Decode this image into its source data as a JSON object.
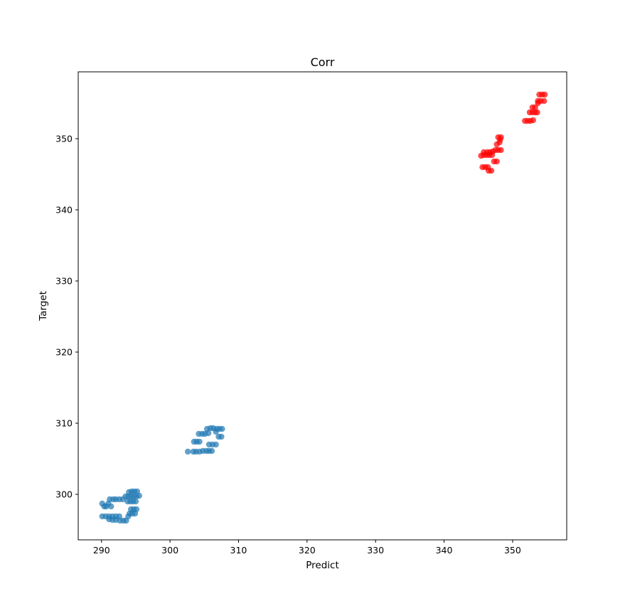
{
  "chart_data": {
    "type": "scatter",
    "title": "Corr",
    "xlabel": "Predict",
    "ylabel": "Target",
    "xlim": [
      286.6,
      357.9
    ],
    "ylim": [
      293.6,
      359.4
    ],
    "xticks": [
      290,
      300,
      310,
      320,
      330,
      340,
      350
    ],
    "yticks": [
      300,
      310,
      320,
      330,
      340,
      350
    ],
    "grid": false,
    "legend": "none",
    "series": [
      {
        "color": "#1f77b4",
        "alpha": 0.7,
        "points": [
          [
            290.1,
            298.7
          ],
          [
            290.4,
            298.3
          ],
          [
            290.7,
            298.3
          ],
          [
            291.0,
            298.7
          ],
          [
            291.4,
            298.3
          ],
          [
            291.2,
            299.3
          ],
          [
            291.7,
            299.3
          ],
          [
            292.1,
            299.3
          ],
          [
            292.6,
            299.3
          ],
          [
            293.1,
            299.3
          ],
          [
            290.1,
            296.9
          ],
          [
            290.6,
            296.9
          ],
          [
            291.1,
            296.9
          ],
          [
            291.6,
            296.9
          ],
          [
            292.1,
            296.9
          ],
          [
            292.6,
            296.9
          ],
          [
            291.1,
            296.5
          ],
          [
            291.6,
            296.4
          ],
          [
            292.1,
            296.4
          ],
          [
            292.7,
            296.3
          ],
          [
            293.2,
            296.3
          ],
          [
            293.6,
            296.3
          ],
          [
            293.9,
            296.9
          ],
          [
            294.1,
            297.3
          ],
          [
            294.5,
            297.3
          ],
          [
            294.9,
            297.3
          ],
          [
            294.3,
            297.9
          ],
          [
            294.7,
            297.9
          ],
          [
            295.1,
            297.9
          ],
          [
            293.8,
            299.0
          ],
          [
            294.2,
            299.0
          ],
          [
            294.6,
            299.0
          ],
          [
            295.0,
            299.0
          ],
          [
            293.5,
            299.7
          ],
          [
            293.9,
            299.7
          ],
          [
            294.3,
            299.7
          ],
          [
            294.7,
            299.7
          ],
          [
            295.1,
            299.7
          ],
          [
            295.5,
            299.8
          ],
          [
            294.0,
            300.3
          ],
          [
            294.4,
            300.4
          ],
          [
            294.8,
            300.4
          ],
          [
            295.2,
            300.4
          ],
          [
            302.6,
            306.0
          ],
          [
            303.4,
            306.0
          ],
          [
            303.8,
            306.0
          ],
          [
            304.3,
            306.0
          ],
          [
            304.8,
            306.1
          ],
          [
            305.3,
            306.1
          ],
          [
            305.7,
            306.1
          ],
          [
            306.1,
            306.1
          ],
          [
            303.5,
            307.4
          ],
          [
            303.9,
            307.4
          ],
          [
            304.3,
            307.4
          ],
          [
            305.7,
            307.0
          ],
          [
            306.2,
            307.0
          ],
          [
            306.7,
            307.0
          ],
          [
            304.2,
            308.5
          ],
          [
            304.7,
            308.5
          ],
          [
            305.1,
            308.5
          ],
          [
            305.6,
            308.6
          ],
          [
            305.4,
            309.2
          ],
          [
            305.9,
            309.3
          ],
          [
            306.3,
            309.3
          ],
          [
            306.8,
            309.2
          ],
          [
            307.2,
            309.2
          ],
          [
            307.6,
            309.2
          ],
          [
            306.7,
            308.8
          ],
          [
            307.1,
            308.1
          ],
          [
            307.5,
            308.1
          ]
        ]
      },
      {
        "color": "#ff0000",
        "alpha": 0.7,
        "points": [
          [
            345.4,
            347.6
          ],
          [
            345.8,
            347.7
          ],
          [
            346.2,
            347.7
          ],
          [
            346.6,
            347.7
          ],
          [
            347.0,
            347.7
          ],
          [
            345.8,
            348.1
          ],
          [
            346.3,
            348.1
          ],
          [
            346.7,
            348.1
          ],
          [
            345.6,
            346.0
          ],
          [
            346.0,
            346.0
          ],
          [
            346.4,
            346.0
          ],
          [
            346.5,
            345.5
          ],
          [
            346.9,
            345.5
          ],
          [
            347.3,
            346.8
          ],
          [
            347.7,
            346.8
          ],
          [
            347.1,
            348.2
          ],
          [
            347.5,
            348.4
          ],
          [
            347.9,
            348.4
          ],
          [
            348.3,
            348.4
          ],
          [
            347.7,
            349.2
          ],
          [
            348.1,
            349.5
          ],
          [
            348.2,
            349.9
          ],
          [
            348.3,
            350.2
          ],
          [
            347.9,
            350.2
          ],
          [
            351.8,
            352.5
          ],
          [
            352.2,
            352.5
          ],
          [
            352.6,
            352.5
          ],
          [
            353.0,
            352.6
          ],
          [
            352.5,
            353.7
          ],
          [
            352.9,
            353.7
          ],
          [
            353.3,
            353.7
          ],
          [
            353.6,
            353.7
          ],
          [
            352.9,
            354.4
          ],
          [
            353.3,
            354.4
          ],
          [
            353.7,
            355.0
          ],
          [
            353.7,
            355.3
          ],
          [
            354.1,
            355.3
          ],
          [
            354.6,
            355.3
          ],
          [
            353.9,
            356.2
          ],
          [
            354.3,
            356.2
          ],
          [
            354.7,
            356.2
          ]
        ]
      }
    ]
  }
}
